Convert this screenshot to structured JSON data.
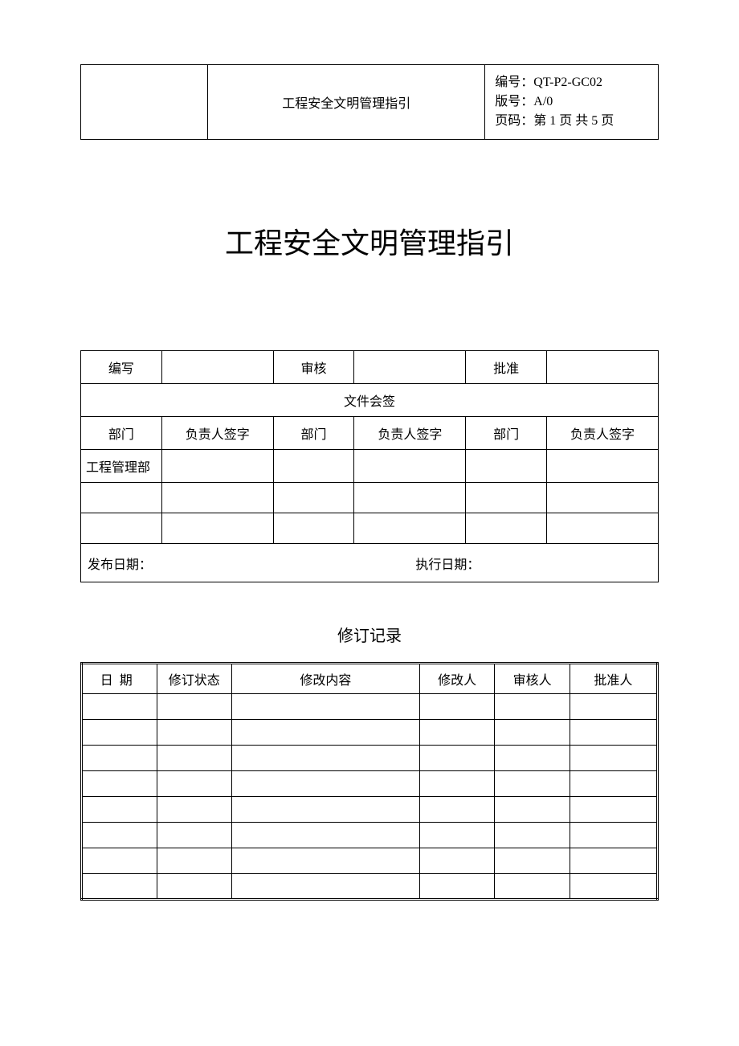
{
  "header": {
    "title": "工程安全文明管理指引",
    "meta": {
      "doc_no_label": "编号：",
      "doc_no_value": "QT-P2-GC02",
      "version_label": "版号：",
      "version_value": "A/0",
      "page_label": "页码：",
      "page_value": "第 1 页 共 5 页"
    }
  },
  "main_title": "工程安全文明管理指引",
  "signoff": {
    "write_label": "编写",
    "write_value": "",
    "review_label": "审核",
    "review_value": "",
    "approve_label": "批准",
    "approve_value": "",
    "file_signoff_label": "文件会签",
    "dept_label": "部门",
    "signer_label": "负责人签字",
    "rows": [
      {
        "dept1": "工程管理部",
        "sig1": "",
        "dept2": "",
        "sig2": "",
        "dept3": "",
        "sig3": ""
      },
      {
        "dept1": "",
        "sig1": "",
        "dept2": "",
        "sig2": "",
        "dept3": "",
        "sig3": ""
      },
      {
        "dept1": "",
        "sig1": "",
        "dept2": "",
        "sig2": "",
        "dept3": "",
        "sig3": ""
      }
    ],
    "publish_date_label": "发布日期：",
    "publish_date_value": "",
    "exec_date_label": "执行日期：",
    "exec_date_value": ""
  },
  "revision": {
    "title": "修订记录",
    "columns": {
      "date": "日期",
      "status": "修订状态",
      "content": "修改内容",
      "modifier": "修改人",
      "reviewer": "审核人",
      "approver": "批准人"
    },
    "rows": [
      {
        "date": "",
        "status": "",
        "content": "",
        "modifier": "",
        "reviewer": "",
        "approver": ""
      },
      {
        "date": "",
        "status": "",
        "content": "",
        "modifier": "",
        "reviewer": "",
        "approver": ""
      },
      {
        "date": "",
        "status": "",
        "content": "",
        "modifier": "",
        "reviewer": "",
        "approver": ""
      },
      {
        "date": "",
        "status": "",
        "content": "",
        "modifier": "",
        "reviewer": "",
        "approver": ""
      },
      {
        "date": "",
        "status": "",
        "content": "",
        "modifier": "",
        "reviewer": "",
        "approver": ""
      },
      {
        "date": "",
        "status": "",
        "content": "",
        "modifier": "",
        "reviewer": "",
        "approver": ""
      },
      {
        "date": "",
        "status": "",
        "content": "",
        "modifier": "",
        "reviewer": "",
        "approver": ""
      },
      {
        "date": "",
        "status": "",
        "content": "",
        "modifier": "",
        "reviewer": "",
        "approver": ""
      }
    ]
  },
  "style": {
    "page_bg": "#ffffff",
    "text_color": "#000000",
    "border_color": "#000000",
    "main_title_fontsize": 36,
    "body_fontsize": 16,
    "header_fontsize": 15,
    "revision_title_fontsize": 20
  }
}
